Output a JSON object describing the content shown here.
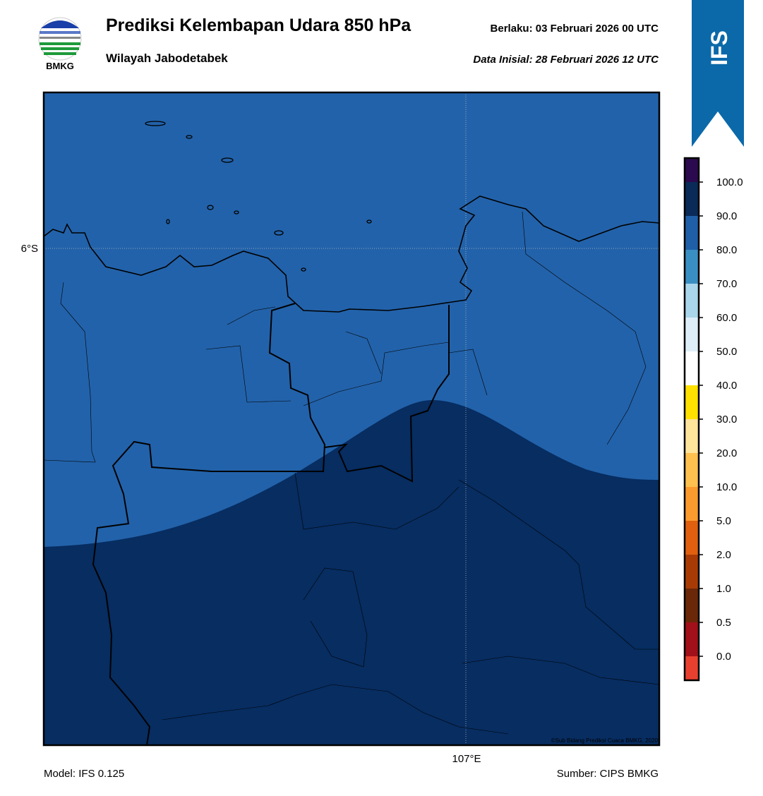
{
  "header": {
    "title": "Prediksi Kelembapan Udara 850 hPa",
    "subtitle": "Wilayah Jabodetabek",
    "valid": "Berlaku:  03 Februari 2026 00 UTC",
    "init": "Data Inisial:  28 Februari 2026 12 UTC",
    "logo_text": "BMKG",
    "badge": "IFS"
  },
  "map": {
    "lat_label": "6°S",
    "lon_label": "107°E",
    "credit": "©Sub Bidang Prediksi Cuaca BMKG, 2020"
  },
  "colorbar": {
    "colors": [
      "#2b0a4f",
      "#0a2a58",
      "#1f5fa8",
      "#3a8fc2",
      "#a9d6ea",
      "#deeef8",
      "#ffffff",
      "#ffe100",
      "#ffe49c",
      "#fec04f",
      "#fb9b2d",
      "#e0600f",
      "#a83b05",
      "#6a2808",
      "#a2101a",
      "#e8402f"
    ],
    "labels": [
      "100.0",
      "90.0",
      "80.0",
      "70.0",
      "60.0",
      "50.0",
      "40.0",
      "30.0",
      "20.0",
      "10.0",
      "5.0",
      "2.0",
      "1.0",
      "0.5",
      "0.0"
    ]
  },
  "footer": {
    "model": "Model: IFS 0.125",
    "source": "Sumber: CIPS BMKG"
  }
}
